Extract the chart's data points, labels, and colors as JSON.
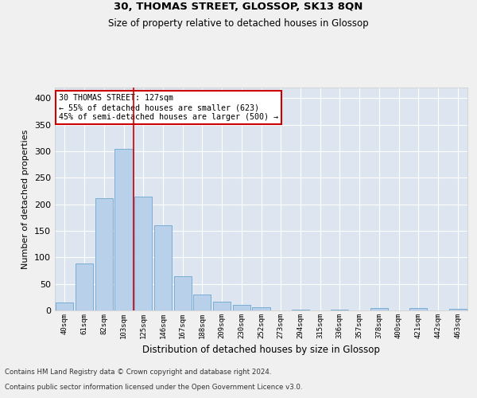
{
  "title1": "30, THOMAS STREET, GLOSSOP, SK13 8QN",
  "title2": "Size of property relative to detached houses in Glossop",
  "xlabel": "Distribution of detached houses by size in Glossop",
  "ylabel": "Number of detached properties",
  "categories": [
    "40sqm",
    "61sqm",
    "82sqm",
    "103sqm",
    "125sqm",
    "146sqm",
    "167sqm",
    "188sqm",
    "209sqm",
    "230sqm",
    "252sqm",
    "273sqm",
    "294sqm",
    "315sqm",
    "336sqm",
    "357sqm",
    "378sqm",
    "400sqm",
    "421sqm",
    "442sqm",
    "463sqm"
  ],
  "values": [
    15,
    88,
    211,
    304,
    215,
    160,
    64,
    30,
    17,
    10,
    6,
    0,
    2,
    0,
    2,
    0,
    5,
    0,
    5,
    0,
    3
  ],
  "bar_color": "#b8d0ea",
  "bar_edge_color": "#7aadd4",
  "background_color": "#dde6f0",
  "grid_color": "#ffffff",
  "annotation_box_text": "30 THOMAS STREET: 127sqm\n← 55% of detached houses are smaller (623)\n45% of semi-detached houses are larger (500) →",
  "vline_color": "#cc0000",
  "annotation_box_color": "#ffffff",
  "annotation_box_edge_color": "#cc0000",
  "footer1": "Contains HM Land Registry data © Crown copyright and database right 2024.",
  "footer2": "Contains public sector information licensed under the Open Government Licence v3.0.",
  "ylim": [
    0,
    420
  ],
  "yticks": [
    0,
    50,
    100,
    150,
    200,
    250,
    300,
    350,
    400
  ],
  "fig_bg": "#f0f0f0"
}
